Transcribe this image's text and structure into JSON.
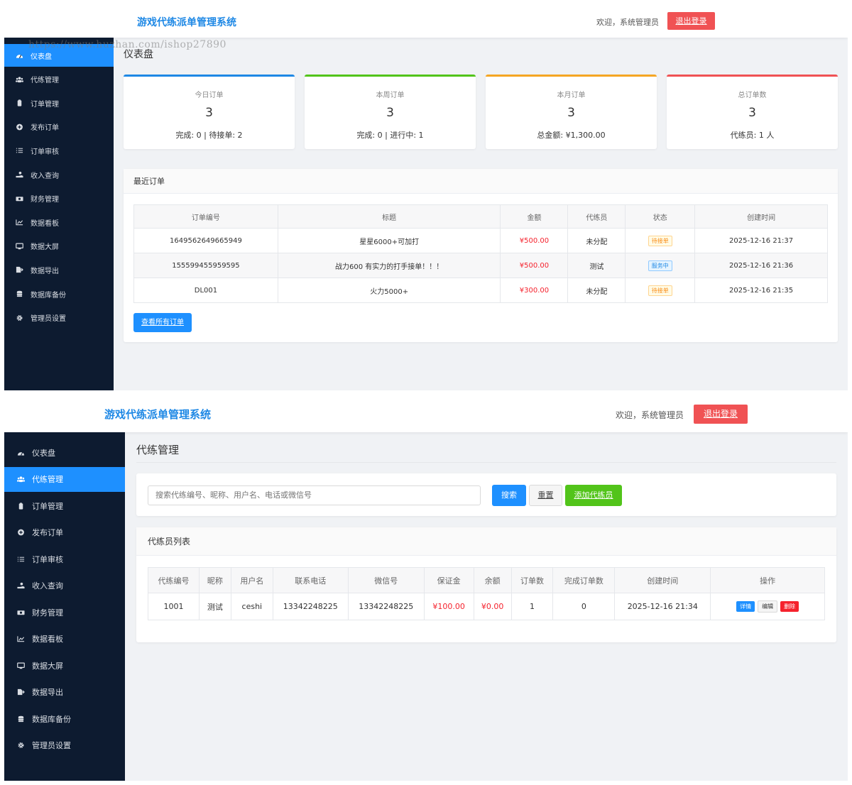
{
  "app_title": "游戏代练派单管理系统",
  "welcome_text": "欢迎，系统管理员",
  "logout_label": "退出登录",
  "watermark": "https://www.huzhan.com/ishop27890",
  "sidebar": [
    {
      "label": "仪表盘",
      "icon": "dashboard-icon"
    },
    {
      "label": "代练管理",
      "icon": "users-icon"
    },
    {
      "label": "订单管理",
      "icon": "clipboard-icon"
    },
    {
      "label": "发布订单",
      "icon": "plus-circle-icon"
    },
    {
      "label": "订单审核",
      "icon": "list-check-icon"
    },
    {
      "label": "收入查询",
      "icon": "hand-coin-icon"
    },
    {
      "label": "财务管理",
      "icon": "money-icon"
    },
    {
      "label": "数据看板",
      "icon": "chart-icon"
    },
    {
      "label": "数据大屏",
      "icon": "monitor-icon"
    },
    {
      "label": "数据导出",
      "icon": "export-icon"
    },
    {
      "label": "数据库备份",
      "icon": "database-icon"
    },
    {
      "label": "管理员设置",
      "icon": "gear-icon"
    }
  ],
  "colors": {
    "accent": "#1e90ff",
    "sidebar_bg": "#0d1b30",
    "danger": "#f05254",
    "success": "#52c41a",
    "warning": "#f5a623"
  },
  "dashboard": {
    "title": "仪表盘",
    "cards": [
      {
        "label": "今日订单",
        "value": "3",
        "sub": "完成: 0 | 待接单: 2",
        "color": "#1e88e5"
      },
      {
        "label": "本周订单",
        "value": "3",
        "sub": "完成: 0 | 进行中: 1",
        "color": "#52c41a"
      },
      {
        "label": "本月订单",
        "value": "3",
        "sub": "总金额: ¥1,300.00",
        "color": "#f5a623"
      },
      {
        "label": "总订单数",
        "value": "3",
        "sub": "代练员: 1 人",
        "color": "#f05254"
      }
    ],
    "recent": {
      "title": "最近订单",
      "headers": [
        "订单编号",
        "标题",
        "金额",
        "代练员",
        "状态",
        "创建时间"
      ],
      "rows": [
        {
          "id": "1649562649665949",
          "title": "星星6000+可加打",
          "amount": "¥500.00",
          "staff": "未分配",
          "status": "待接单",
          "status_type": "pending",
          "time": "2025-12-16 21:37"
        },
        {
          "id": "155599455959595",
          "title": "战力600 有实力的打手接单！！！",
          "amount": "¥500.00",
          "staff": "测试",
          "status": "服务中",
          "status_type": "serving",
          "time": "2025-12-16 21:36"
        },
        {
          "id": "DL001",
          "title": "火力5000+",
          "amount": "¥300.00",
          "staff": "未分配",
          "status": "待接单",
          "status_type": "pending",
          "time": "2025-12-16 21:35"
        }
      ],
      "view_all_label": "查看所有订单"
    }
  },
  "staff_page": {
    "title": "代练管理",
    "search_placeholder": "搜索代练编号、昵称、用户名、电话或微信号",
    "search_label": "搜索",
    "reset_label": "重置",
    "add_label": "添加代练员",
    "list_title": "代练员列表",
    "headers": [
      "代练编号",
      "昵称",
      "用户名",
      "联系电话",
      "微信号",
      "保证金",
      "余额",
      "订单数",
      "完成订单数",
      "创建时间",
      "操作"
    ],
    "rows": [
      {
        "id": "1001",
        "nickname": "测试",
        "username": "ceshi",
        "phone": "13342248225",
        "wechat": "13342248225",
        "deposit": "¥100.00",
        "balance": "¥0.00",
        "orders": "1",
        "completed": "0",
        "time": "2025-12-16 21:34"
      }
    ],
    "actions": {
      "detail": "详情",
      "edit": "编辑",
      "delete": "删除"
    }
  }
}
